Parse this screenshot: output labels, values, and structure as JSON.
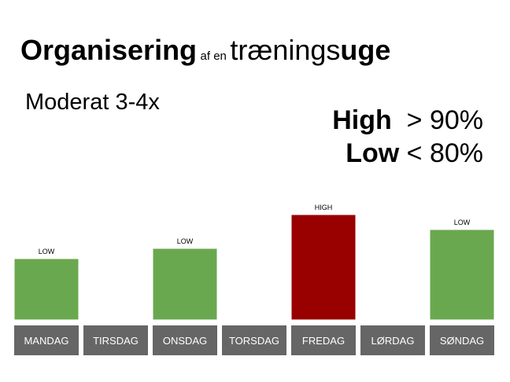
{
  "title": {
    "part1": "Organisering",
    "part2": "af en",
    "part3": "trænings",
    "part4": "uge"
  },
  "subtitle": "Moderat 3-4x",
  "legend": {
    "high_label": "High",
    "high_value": "> 90%",
    "low_label": "Low",
    "low_value": "< 80%"
  },
  "colors": {
    "low": "#6aa84f",
    "high": "#990000",
    "label_bg": "#666666",
    "label_text": "#ffffff"
  },
  "chart_data": {
    "type": "bar",
    "categories": [
      "MANDAG",
      "TIRSDAG",
      "ONSDAG",
      "TORSDAG",
      "FREDAG",
      "LØRDAG",
      "SØNDAG"
    ],
    "values": [
      78,
      null,
      91,
      null,
      134,
      null,
      115
    ],
    "intensity": [
      "LOW",
      null,
      "LOW",
      null,
      "HIGH",
      null,
      "LOW"
    ],
    "ylim": [
      0,
      140
    ],
    "grid": false
  }
}
